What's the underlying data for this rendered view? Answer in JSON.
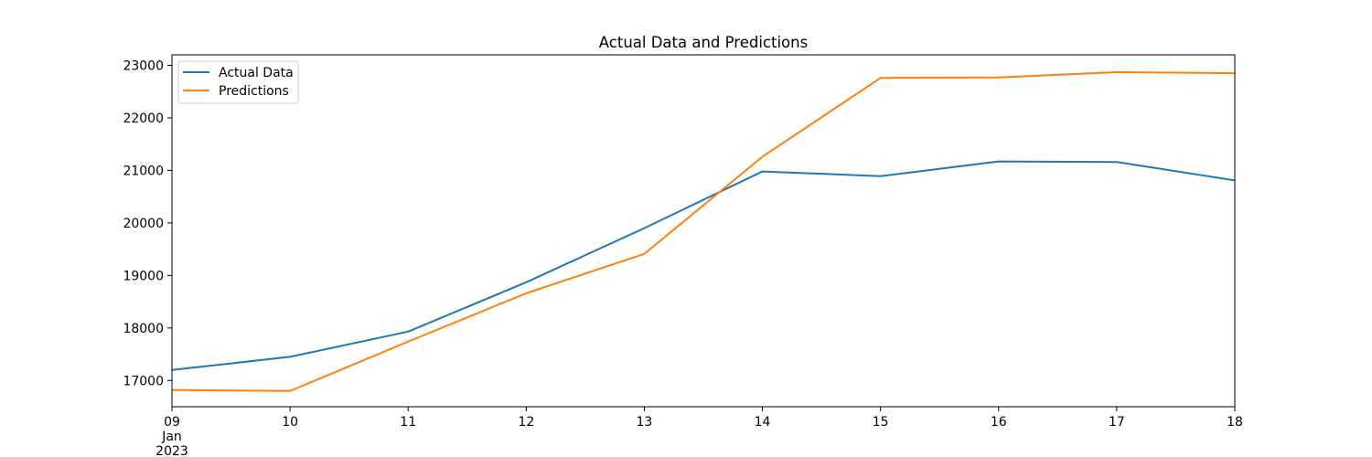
{
  "chart_data": {
    "type": "line",
    "title": "Actual Data and Predictions",
    "xlabel": "",
    "ylabel": "",
    "x": [
      "2023-01-09",
      "2023-01-10",
      "2023-01-11",
      "2023-01-12",
      "2023-01-13",
      "2023-01-14",
      "2023-01-15",
      "2023-01-16",
      "2023-01-17",
      "2023-01-18"
    ],
    "x_tick_labels": [
      "09",
      "10",
      "11",
      "12",
      "13",
      "14",
      "15",
      "16",
      "17",
      "18"
    ],
    "x_tick_sublabels": [
      "Jan",
      "2023"
    ],
    "xlim": [
      "2023-01-09",
      "2023-01-18"
    ],
    "ylim": [
      16500,
      23200
    ],
    "y_ticks": [
      17000,
      18000,
      19000,
      20000,
      21000,
      22000,
      23000
    ],
    "grid": false,
    "legend_position": "upper left",
    "series": [
      {
        "name": "Actual Data",
        "color": "#1f77b4",
        "values": [
          17200,
          17450,
          17930,
          18870,
          19900,
          20980,
          20890,
          21170,
          21160,
          20810
        ]
      },
      {
        "name": "Predictions",
        "color": "#ff7f0e",
        "values": [
          16820,
          16800,
          17740,
          18660,
          19410,
          21260,
          22760,
          22770,
          22870,
          22850
        ]
      }
    ]
  }
}
